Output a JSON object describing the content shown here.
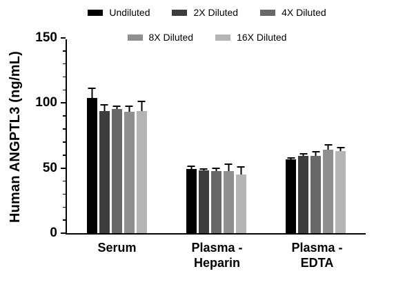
{
  "chart_data": {
    "type": "bar",
    "ylabel": "Human ANGPTL3 (ng/mL)",
    "ylim": [
      0,
      150
    ],
    "yticks": [
      0,
      50,
      100,
      150
    ],
    "minor_tick_step": 10,
    "grid": false,
    "legend_position": "top",
    "legend_rows": [
      3,
      2
    ],
    "categories": [
      "Serum",
      "Plasma -\nHeparin",
      "Plasma -\nEDTA"
    ],
    "series": [
      {
        "name": "Undiluted",
        "color": "#000000",
        "values": [
          104.0,
          49.5,
          56.5
        ],
        "errors": [
          8.0,
          2.5,
          2.0
        ]
      },
      {
        "name": "2X Diluted",
        "color": "#3d3d3d",
        "values": [
          94.0,
          48.0,
          59.5
        ],
        "errors": [
          5.0,
          2.0,
          2.0
        ]
      },
      {
        "name": "4X Diluted",
        "color": "#686868",
        "values": [
          95.5,
          47.5,
          59.5
        ],
        "errors": [
          2.5,
          3.0,
          3.5
        ]
      },
      {
        "name": "8X Diluted",
        "color": "#8f8f8f",
        "values": [
          93.5,
          47.5,
          64.0
        ],
        "errors": [
          4.5,
          6.0,
          4.5
        ]
      },
      {
        "name": "16X Diluted",
        "color": "#b4b4b4",
        "values": [
          94.0,
          45.0,
          63.0
        ],
        "errors": [
          8.0,
          6.5,
          3.5
        ]
      }
    ]
  }
}
